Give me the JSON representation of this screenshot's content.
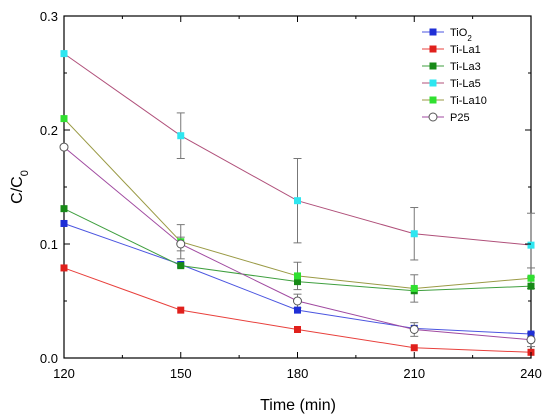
{
  "chart_data": {
    "type": "line",
    "title": "",
    "xlabel": "Time (min)",
    "ylabel": "C/C",
    "ylabel_sub": "0",
    "x": [
      120,
      150,
      180,
      210,
      240
    ],
    "xlim": [
      120,
      240
    ],
    "ylim": [
      0,
      0.3
    ],
    "xticks": [
      "120",
      "150",
      "180",
      "210",
      "240"
    ],
    "yticks": [
      "0.0",
      "0.1",
      "0.2",
      "0.3"
    ],
    "grid": false,
    "legend": "top-right",
    "series": [
      {
        "name": "TiO",
        "name_sub": "2",
        "marker_color": "#1f2fd6",
        "line_color": "#4b55e0",
        "marker": "square",
        "values": [
          0.118,
          0.082,
          0.042,
          0.026,
          0.021
        ]
      },
      {
        "name": "Ti-La1",
        "name_sub": "",
        "marker_color": "#e0201c",
        "line_color": "#e8403c",
        "marker": "square",
        "values": [
          0.079,
          0.042,
          0.025,
          0.009,
          0.005
        ]
      },
      {
        "name": "Ti-La3",
        "name_sub": "",
        "marker_color": "#178a17",
        "line_color": "#3f9f3f",
        "marker": "square",
        "values": [
          0.131,
          0.081,
          0.067,
          0.059,
          0.063
        ]
      },
      {
        "name": "Ti-La5",
        "name_sub": "",
        "marker_color": "#2ee6f0",
        "line_color": "#b0507a",
        "marker": "square",
        "values": [
          0.267,
          0.195,
          0.138,
          0.109,
          0.099
        ],
        "errors": [
          0.0,
          0.02,
          0.037,
          0.023,
          0.028
        ]
      },
      {
        "name": "Ti-La10",
        "name_sub": "",
        "marker_color": "#30e030",
        "line_color": "#9a9a45",
        "marker": "square",
        "values": [
          0.21,
          0.102,
          0.072,
          0.061,
          0.07
        ],
        "errors": [
          0.0,
          0.015,
          0.012,
          0.012,
          0.009
        ]
      },
      {
        "name": "P25",
        "name_sub": "",
        "marker_color": "#555555",
        "line_color": "#a04aa0",
        "marker": "circle-open",
        "values": [
          0.185,
          0.1,
          0.05,
          0.025,
          0.016
        ],
        "errors": [
          0.0,
          0.006,
          0.006,
          0.006,
          0.006
        ]
      }
    ]
  }
}
